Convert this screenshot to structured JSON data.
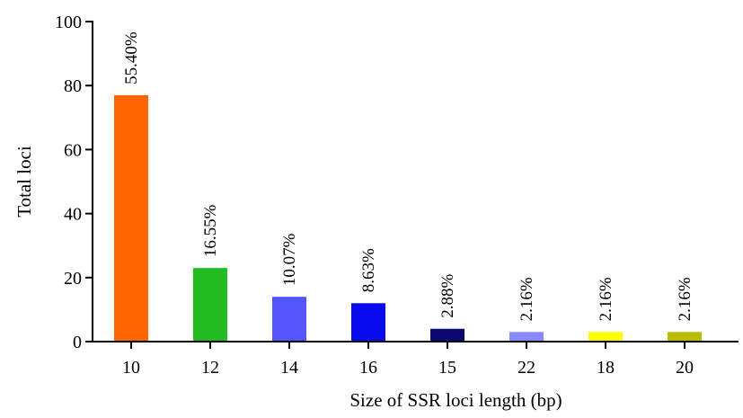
{
  "chart_data": {
    "type": "bar",
    "xlabel": "Size of SSR loci length (bp)",
    "ylabel": "Total loci",
    "ylim": [
      0,
      100
    ],
    "yticks": [
      0,
      20,
      40,
      60,
      80,
      100
    ],
    "grid": false,
    "legend": "none",
    "categories": [
      "10",
      "12",
      "14",
      "16",
      "15",
      "22",
      "18",
      "20"
    ],
    "values": [
      77,
      23,
      14,
      12,
      4,
      3,
      3,
      3
    ],
    "data_labels": [
      "55.40%",
      "16.55%",
      "10.07%",
      "8.63%",
      "2.88%",
      "2.16%",
      "2.16%",
      "2.16%"
    ],
    "colors": [
      "#ff6600",
      "#22bb22",
      "#5555ff",
      "#0a0aee",
      "#0a0a70",
      "#8888ff",
      "#ffff00",
      "#bbbb00"
    ]
  }
}
